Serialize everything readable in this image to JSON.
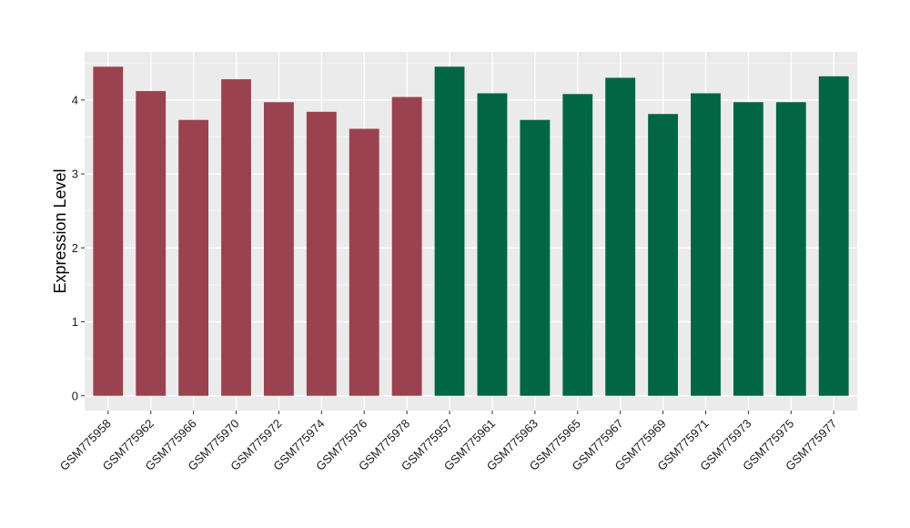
{
  "chart_data": {
    "type": "bar",
    "title": "",
    "xlabel": "",
    "ylabel": "Expression Level",
    "ylim": [
      -0.2,
      4.65
    ],
    "yticks": [
      0,
      1,
      2,
      3,
      4
    ],
    "grid": true,
    "background": "#ebebeb",
    "categories": [
      "GSM775958",
      "GSM775962",
      "GSM775966",
      "GSM775970",
      "GSM775972",
      "GSM775974",
      "GSM775976",
      "GSM775978",
      "GSM775957",
      "GSM775961",
      "GSM775963",
      "GSM775965",
      "GSM775967",
      "GSM775969",
      "GSM775971",
      "GSM775973",
      "GSM775975",
      "GSM775977"
    ],
    "values": [
      4.45,
      4.12,
      3.73,
      4.28,
      3.97,
      3.84,
      3.61,
      4.04,
      4.45,
      4.09,
      3.73,
      4.08,
      4.3,
      3.81,
      4.09,
      3.97,
      3.97,
      4.32
    ],
    "group_colors": [
      "#9a4250",
      "#006644"
    ],
    "bar_groups": [
      0,
      0,
      0,
      0,
      0,
      0,
      0,
      0,
      1,
      1,
      1,
      1,
      1,
      1,
      1,
      1,
      1,
      1
    ]
  }
}
